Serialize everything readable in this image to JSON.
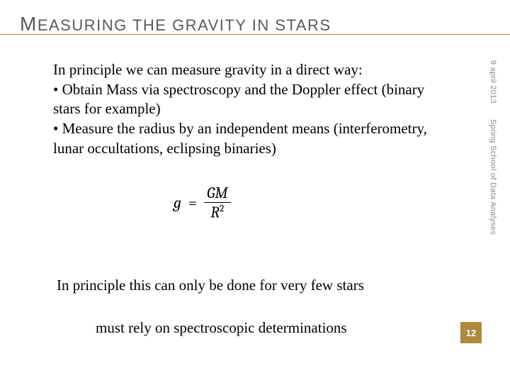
{
  "title": {
    "first_letter": "M",
    "rest": "EASURING THE GRAVITY IN STARS"
  },
  "body": {
    "intro": "In principle we can measure gravity in a direct way:",
    "bullet1": "• Obtain Mass via spectroscopy and the Doppler effect (binary stars for example)",
    "bullet2": "• Measure the radius by an independent means (interferometry, lunar occultations, eclipsing binaries)"
  },
  "equation": {
    "lhs": "g",
    "eq": "=",
    "num": "GM",
    "den_base": "R",
    "den_exp": "2"
  },
  "footer": {
    "line1": "In principle this can only be done for very few stars",
    "line2": "must rely on spectroscopic determinations"
  },
  "side": {
    "date": "9 april 2013",
    "event": "Spring School of Data Analyses"
  },
  "page_number": "12",
  "colors": {
    "accent": "#b08840",
    "title_text": "#5a5a5a",
    "side_text": "#888888"
  }
}
